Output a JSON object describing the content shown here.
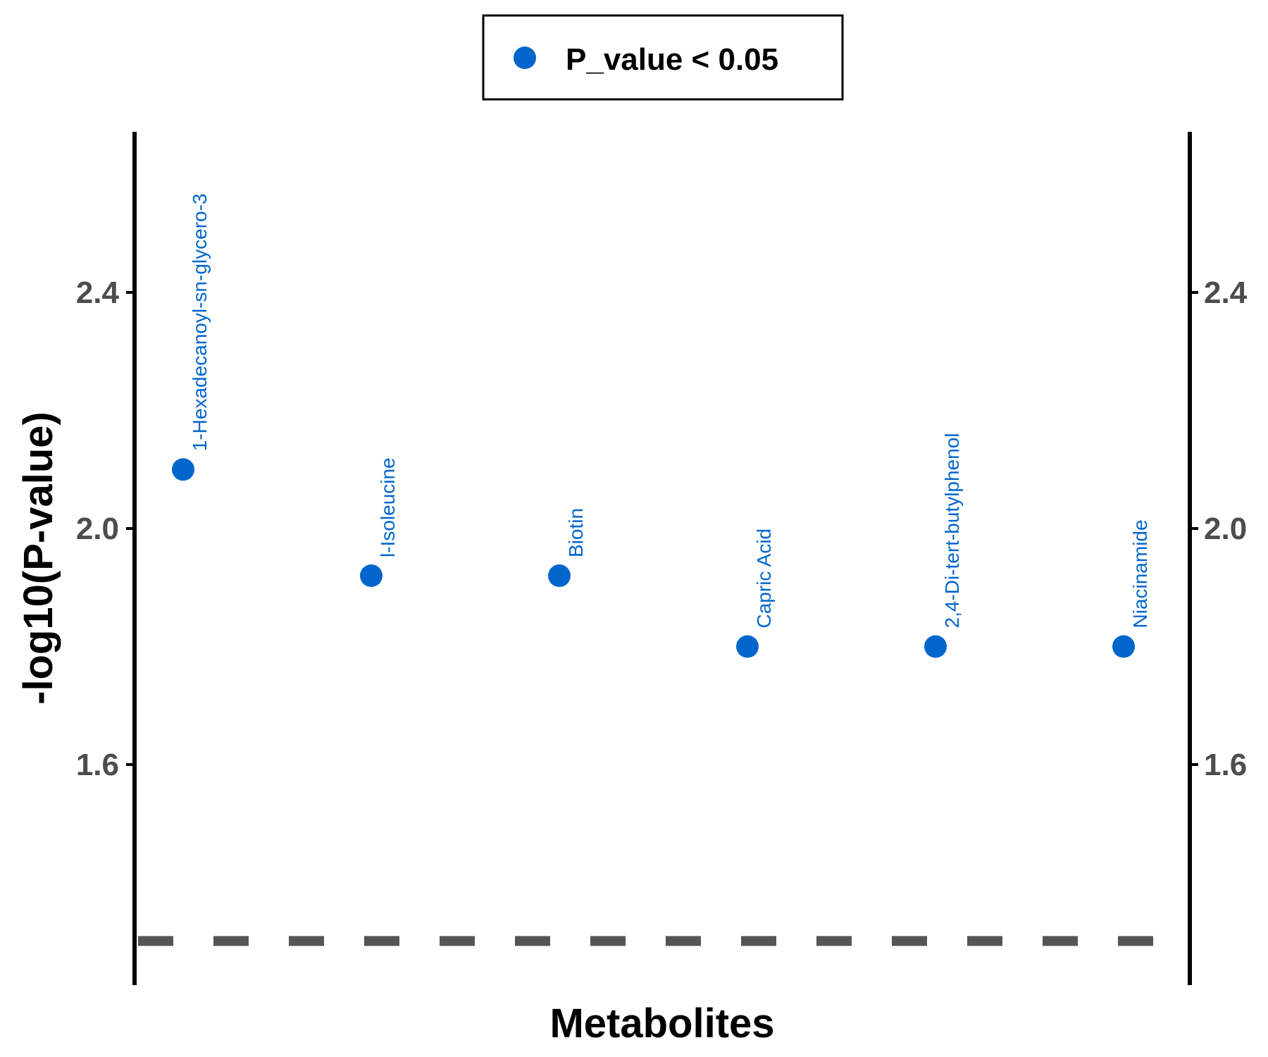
{
  "chart_data": {
    "type": "scatter",
    "title": "",
    "xlabel": "Metabolites",
    "ylabel": "-log10(P-value)",
    "ylim": [
      1.3,
      2.7
    ],
    "y_ticks": [
      1.6,
      2.0,
      2.4
    ],
    "y_tick_labels": [
      "1.6",
      "2.0",
      "2.4"
    ],
    "secondary_y_axis": true,
    "threshold_line": {
      "y": 1.301,
      "style": "dashed",
      "color": "#555555"
    },
    "grid": false,
    "legend": {
      "position": "top-center",
      "entries": [
        {
          "label": "P_value < 0.05",
          "color": "#0066CC"
        }
      ]
    },
    "series": [
      {
        "name": "P_value < 0.05",
        "color": "#0066CC",
        "points": [
          {
            "label": "1-Hexadecanoyl-sn-glycero-3",
            "y": 2.1
          },
          {
            "label": "l-Isoleucine",
            "y": 1.92
          },
          {
            "label": "Biotin",
            "y": 1.92
          },
          {
            "label": "Capric Acid",
            "y": 1.8
          },
          {
            "label": "2,4-Di-tert-butylphenol",
            "y": 1.8
          },
          {
            "label": "Niacinamide",
            "y": 1.8
          }
        ]
      }
    ]
  }
}
